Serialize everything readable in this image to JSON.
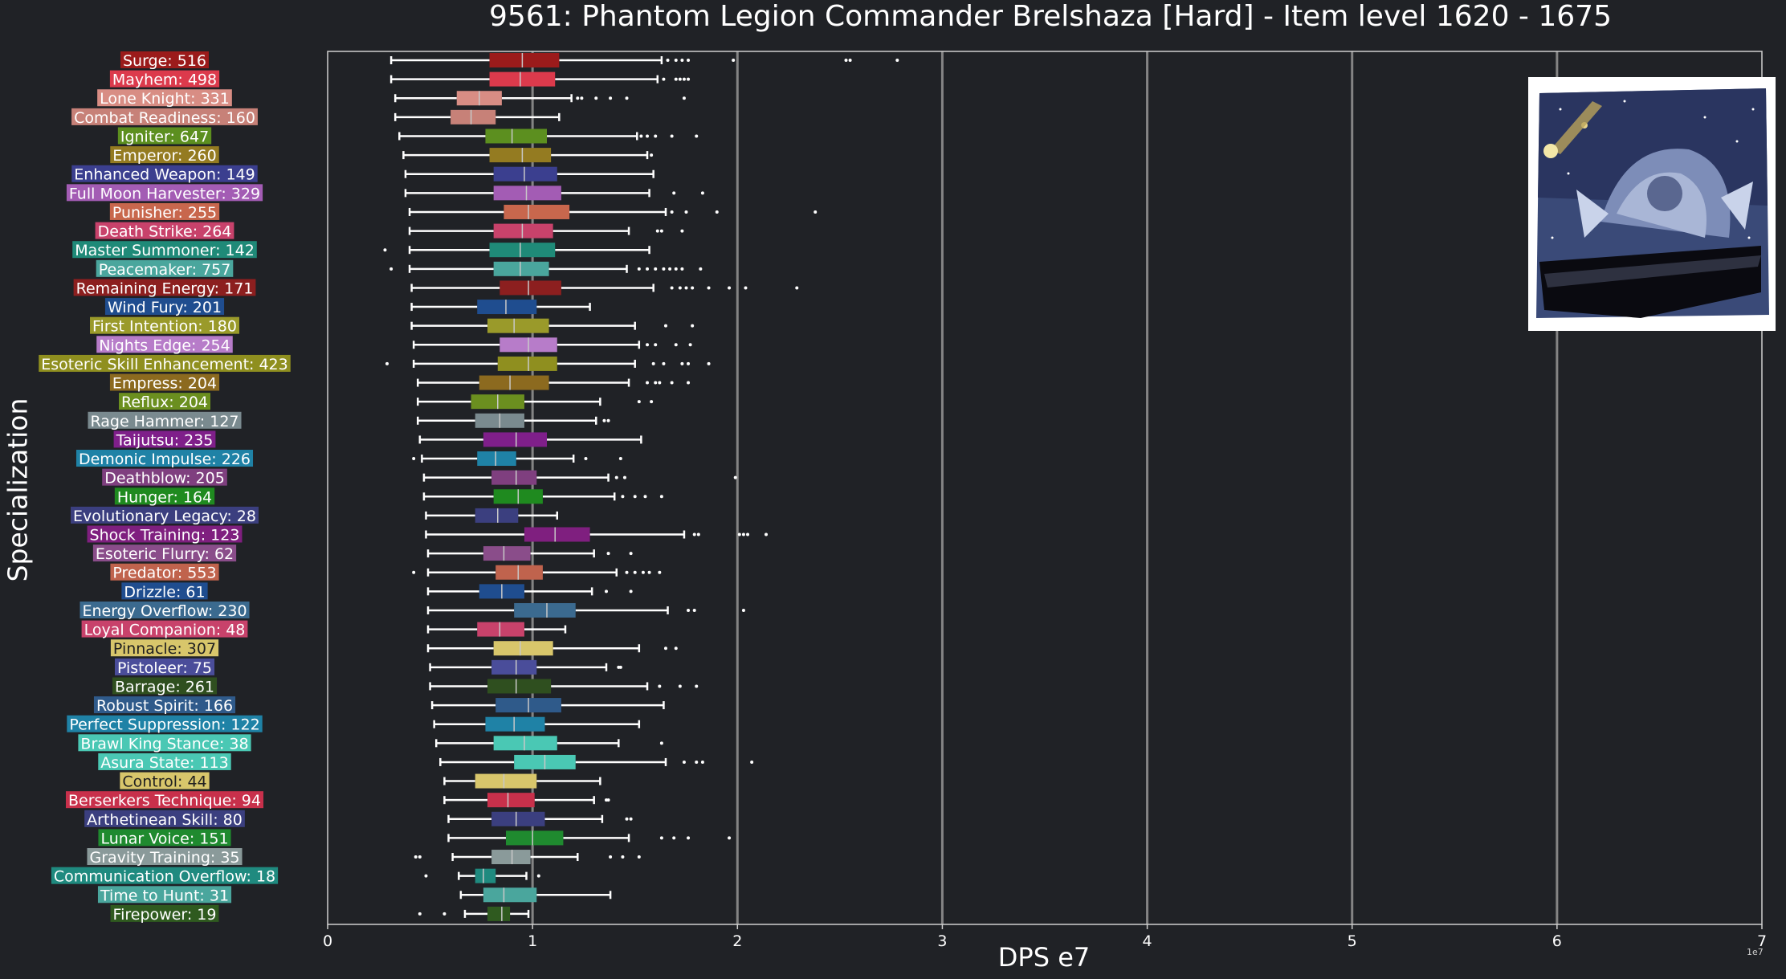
{
  "chart_data": {
    "type": "boxplot",
    "title": "9561: Phantom Legion Commander Brelshaza [Hard] - Item level 1620 - 1675",
    "xlabel": "DPS e7",
    "ylabel": "Specialization",
    "xlim": [
      0,
      7
    ],
    "x_ticks": [
      "0",
      "1",
      "2",
      "3",
      "4",
      "5",
      "6",
      "7"
    ],
    "x_exponent": "1e7",
    "grid": "vertical",
    "units": "x values in units of 1e7 DPS",
    "series": [
      {
        "label": "Surge: 516",
        "color": "#9b1b1b",
        "whisker_low": 0.31,
        "q1": 0.79,
        "median": 0.95,
        "q3": 1.13,
        "whisker_high": 1.63,
        "outliers": [
          1.66,
          1.7,
          1.73,
          1.76,
          1.98,
          2.53,
          2.55,
          2.78
        ]
      },
      {
        "label": "Mayhem: 498",
        "color": "#dc3a4c",
        "whisker_low": 0.31,
        "q1": 0.79,
        "median": 0.94,
        "q3": 1.11,
        "whisker_high": 1.61,
        "outliers": [
          1.64,
          1.7,
          1.72,
          1.74,
          1.76
        ]
      },
      {
        "label": "Lone Knight: 331",
        "color": "#d88d84",
        "whisker_low": 0.33,
        "q1": 0.63,
        "median": 0.74,
        "q3": 0.85,
        "whisker_high": 1.19,
        "outliers": [
          1.22,
          1.24,
          1.31,
          1.38,
          1.46,
          1.74
        ]
      },
      {
        "label": "Combat Readiness: 160",
        "color": "#c78178",
        "whisker_low": 0.33,
        "q1": 0.6,
        "median": 0.7,
        "q3": 0.82,
        "whisker_high": 1.13,
        "outliers": []
      },
      {
        "label": "Igniter: 647",
        "color": "#5c8f1f",
        "whisker_low": 0.35,
        "q1": 0.77,
        "median": 0.9,
        "q3": 1.07,
        "whisker_high": 1.51,
        "outliers": [
          1.53,
          1.56,
          1.6,
          1.68,
          1.8
        ]
      },
      {
        "label": "Emperor: 260",
        "color": "#947b21",
        "whisker_low": 0.37,
        "q1": 0.79,
        "median": 0.95,
        "q3": 1.09,
        "whisker_high": 1.56,
        "outliers": [
          1.58
        ]
      },
      {
        "label": "Enhanced Weapon: 149",
        "color": "#3b3f8f",
        "whisker_low": 0.38,
        "q1": 0.81,
        "median": 0.96,
        "q3": 1.12,
        "whisker_high": 1.59,
        "outliers": []
      },
      {
        "label": "Full Moon Harvester: 329",
        "color": "#a35cb4",
        "whisker_low": 0.38,
        "q1": 0.81,
        "median": 0.97,
        "q3": 1.14,
        "whisker_high": 1.57,
        "outliers": [
          1.69,
          1.83
        ]
      },
      {
        "label": "Punisher: 255",
        "color": "#c8674d",
        "whisker_low": 0.4,
        "q1": 0.86,
        "median": 0.98,
        "q3": 1.18,
        "whisker_high": 1.65,
        "outliers": [
          1.68,
          1.75,
          1.9,
          2.38
        ]
      },
      {
        "label": "Death Strike: 264",
        "color": "#c8426b",
        "whisker_low": 0.4,
        "q1": 0.81,
        "median": 0.95,
        "q3": 1.1,
        "whisker_high": 1.47,
        "outliers": [
          1.61,
          1.63,
          1.73
        ]
      },
      {
        "label": "Master Summoner: 142",
        "color": "#1f8a78",
        "whisker_low": 0.4,
        "q1": 0.79,
        "median": 0.94,
        "q3": 1.11,
        "whisker_high": 1.57,
        "outliers": [
          0.28
        ]
      },
      {
        "label": "Peacemaker: 757",
        "color": "#4aa69d",
        "whisker_low": 0.4,
        "q1": 0.81,
        "median": 0.94,
        "q3": 1.08,
        "whisker_high": 1.46,
        "outliers": [
          0.31,
          1.52,
          1.56,
          1.6,
          1.64,
          1.67,
          1.7,
          1.73,
          1.82
        ]
      },
      {
        "label": "Remaining Energy: 171",
        "color": "#8c1f1f",
        "whisker_low": 0.41,
        "q1": 0.84,
        "median": 0.98,
        "q3": 1.14,
        "whisker_high": 1.59,
        "outliers": [
          1.68,
          1.72,
          1.75,
          1.78,
          1.86,
          1.96,
          2.04,
          2.29
        ]
      },
      {
        "label": "Wind Fury: 201",
        "color": "#1f4d8f",
        "whisker_low": 0.41,
        "q1": 0.73,
        "median": 0.87,
        "q3": 1.02,
        "whisker_high": 1.28,
        "outliers": []
      },
      {
        "label": "First Intention: 180",
        "color": "#9a9a2a",
        "whisker_low": 0.41,
        "q1": 0.78,
        "median": 0.91,
        "q3": 1.08,
        "whisker_high": 1.5,
        "outliers": [
          1.65,
          1.78
        ]
      },
      {
        "label": "Nights Edge: 254",
        "color": "#b77cc9",
        "whisker_low": 0.42,
        "q1": 0.84,
        "median": 0.98,
        "q3": 1.12,
        "whisker_high": 1.52,
        "outliers": [
          1.56,
          1.6,
          1.7,
          1.77
        ]
      },
      {
        "label": "Esoteric Skill Enhancement: 423",
        "color": "#8f8f1f",
        "whisker_low": 0.42,
        "q1": 0.83,
        "median": 0.98,
        "q3": 1.12,
        "whisker_high": 1.5,
        "outliers": [
          0.29,
          1.59,
          1.64,
          1.73,
          1.76,
          1.86
        ]
      },
      {
        "label": "Empress: 204",
        "color": "#8c6a1f",
        "whisker_low": 0.44,
        "q1": 0.74,
        "median": 0.89,
        "q3": 1.08,
        "whisker_high": 1.47,
        "outliers": [
          1.56,
          1.6,
          1.62,
          1.68,
          1.76
        ]
      },
      {
        "label": "Reflux: 204",
        "color": "#6b8f1f",
        "whisker_low": 0.44,
        "q1": 0.7,
        "median": 0.83,
        "q3": 0.96,
        "whisker_high": 1.33,
        "outliers": [
          1.52,
          1.58
        ]
      },
      {
        "label": "Rage Hammer: 127",
        "color": "#7a8a8f",
        "whisker_low": 0.44,
        "q1": 0.72,
        "median": 0.84,
        "q3": 0.96,
        "whisker_high": 1.31,
        "outliers": [
          1.35,
          1.37
        ]
      },
      {
        "label": "Taijutsu: 235",
        "color": "#7f1f8a",
        "whisker_low": 0.45,
        "q1": 0.76,
        "median": 0.92,
        "q3": 1.07,
        "whisker_high": 1.53,
        "outliers": []
      },
      {
        "label": "Demonic Impulse: 226",
        "color": "#1f82a6",
        "whisker_low": 0.46,
        "q1": 0.73,
        "median": 0.82,
        "q3": 0.92,
        "whisker_high": 1.2,
        "outliers": [
          0.42,
          1.26,
          1.43
        ]
      },
      {
        "label": "Deathblow: 205",
        "color": "#7f3f7f",
        "whisker_low": 0.47,
        "q1": 0.8,
        "median": 0.92,
        "q3": 1.02,
        "whisker_high": 1.37,
        "outliers": [
          1.41,
          1.45,
          1.99
        ]
      },
      {
        "label": "Hunger: 164",
        "color": "#1f8a1f",
        "whisker_low": 0.47,
        "q1": 0.81,
        "median": 0.93,
        "q3": 1.05,
        "whisker_high": 1.4,
        "outliers": [
          1.44,
          1.5,
          1.55,
          1.63
        ]
      },
      {
        "label": "Evolutionary Legacy: 28",
        "color": "#3b3f7f",
        "whisker_low": 0.48,
        "q1": 0.72,
        "median": 0.83,
        "q3": 0.93,
        "whisker_high": 1.12,
        "outliers": []
      },
      {
        "label": "Shock Training: 123",
        "color": "#7f1f7f",
        "whisker_low": 0.48,
        "q1": 0.96,
        "median": 1.11,
        "q3": 1.28,
        "whisker_high": 1.74,
        "outliers": [
          1.79,
          1.81,
          2.01,
          2.03,
          2.05,
          2.14
        ]
      },
      {
        "label": "Esoteric Flurry: 62",
        "color": "#8a4d8a",
        "whisker_low": 0.49,
        "q1": 0.76,
        "median": 0.86,
        "q3": 0.99,
        "whisker_high": 1.3,
        "outliers": [
          1.37,
          1.48
        ]
      },
      {
        "label": "Predator: 553",
        "color": "#c0634d",
        "whisker_low": 0.49,
        "q1": 0.82,
        "median": 0.93,
        "q3": 1.05,
        "whisker_high": 1.41,
        "outliers": [
          0.42,
          1.46,
          1.5,
          1.54,
          1.57,
          1.62
        ]
      },
      {
        "label": "Drizzle: 61",
        "color": "#1f4d8f",
        "whisker_low": 0.49,
        "q1": 0.74,
        "median": 0.85,
        "q3": 0.96,
        "whisker_high": 1.29,
        "outliers": [
          1.36,
          1.48
        ]
      },
      {
        "label": "Energy Overflow: 230",
        "color": "#3b6a8f",
        "whisker_low": 0.49,
        "q1": 0.91,
        "median": 1.07,
        "q3": 1.21,
        "whisker_high": 1.66,
        "outliers": [
          1.76,
          1.79,
          2.03
        ]
      },
      {
        "label": "Loyal Companion: 48",
        "color": "#c8426b",
        "whisker_low": 0.49,
        "q1": 0.73,
        "median": 0.84,
        "q3": 0.96,
        "whisker_high": 1.16,
        "outliers": []
      },
      {
        "label": "Pinnacle: 307",
        "color": "#d8c66b",
        "whisker_low": 0.49,
        "q1": 0.81,
        "median": 0.94,
        "q3": 1.1,
        "whisker_high": 1.52,
        "outliers": [
          1.65,
          1.7
        ]
      },
      {
        "label": "Pistoleer: 75",
        "color": "#4a4d9a",
        "whisker_low": 0.5,
        "q1": 0.8,
        "median": 0.92,
        "q3": 1.02,
        "whisker_high": 1.36,
        "outliers": [
          1.42,
          1.43
        ]
      },
      {
        "label": "Barrage: 261",
        "color": "#2f4f1f",
        "whisker_low": 0.5,
        "q1": 0.78,
        "median": 0.92,
        "q3": 1.09,
        "whisker_high": 1.56,
        "outliers": [
          1.62,
          1.72,
          1.8
        ]
      },
      {
        "label": "Robust Spirit: 166",
        "color": "#2f5a8a",
        "whisker_low": 0.51,
        "q1": 0.82,
        "median": 0.98,
        "q3": 1.14,
        "whisker_high": 1.64,
        "outliers": []
      },
      {
        "label": "Perfect Suppression: 122",
        "color": "#1f82a6",
        "whisker_low": 0.52,
        "q1": 0.77,
        "median": 0.91,
        "q3": 1.06,
        "whisker_high": 1.52,
        "outliers": []
      },
      {
        "label": "Brawl King Stance: 38",
        "color": "#4ac8b4",
        "whisker_low": 0.53,
        "q1": 0.81,
        "median": 0.96,
        "q3": 1.12,
        "whisker_high": 1.42,
        "outliers": [
          1.63
        ]
      },
      {
        "label": "Asura State: 113",
        "color": "#4ac8b4",
        "whisker_low": 0.55,
        "q1": 0.91,
        "median": 1.06,
        "q3": 1.21,
        "whisker_high": 1.65,
        "outliers": [
          1.74,
          1.8,
          1.83,
          2.07
        ]
      },
      {
        "label": "Control: 44",
        "color": "#d8c66b",
        "whisker_low": 0.57,
        "q1": 0.72,
        "median": 0.86,
        "q3": 1.02,
        "whisker_high": 1.33,
        "outliers": []
      },
      {
        "label": "Berserkers Technique: 94",
        "color": "#c8304b",
        "whisker_low": 0.57,
        "q1": 0.78,
        "median": 0.88,
        "q3": 1.01,
        "whisker_high": 1.3,
        "outliers": [
          1.36,
          1.37
        ]
      },
      {
        "label": "Arthetinean Skill: 80",
        "color": "#3b3f7f",
        "whisker_low": 0.59,
        "q1": 0.8,
        "median": 0.92,
        "q3": 1.06,
        "whisker_high": 1.34,
        "outliers": [
          1.46,
          1.48
        ]
      },
      {
        "label": "Lunar Voice: 151",
        "color": "#1f8a2f",
        "whisker_low": 0.59,
        "q1": 0.87,
        "median": 1.0,
        "q3": 1.15,
        "whisker_high": 1.47,
        "outliers": [
          1.63,
          1.69,
          1.76,
          1.96
        ]
      },
      {
        "label": "Gravity Training: 35",
        "color": "#8a9a9a",
        "whisker_low": 0.61,
        "q1": 0.8,
        "median": 0.9,
        "q3": 0.99,
        "whisker_high": 1.22,
        "outliers": [
          0.43,
          0.45,
          1.38,
          1.44,
          1.52
        ]
      },
      {
        "label": "Communication Overflow: 18",
        "color": "#1f8a7f",
        "whisker_low": 0.64,
        "q1": 0.72,
        "median": 0.76,
        "q3": 0.82,
        "whisker_high": 0.97,
        "outliers": [
          0.48,
          1.03
        ]
      },
      {
        "label": "Time to Hunt: 31",
        "color": "#4aa69d",
        "whisker_low": 0.65,
        "q1": 0.76,
        "median": 0.86,
        "q3": 1.02,
        "whisker_high": 1.38,
        "outliers": []
      },
      {
        "label": "Firepower: 19",
        "color": "#2f5a1f",
        "whisker_low": 0.67,
        "q1": 0.78,
        "median": 0.85,
        "q3": 0.89,
        "whisker_high": 0.98,
        "outliers": [
          0.45,
          0.57
        ]
      }
    ]
  },
  "image": {
    "icon": "brelshaza-raid-art"
  }
}
